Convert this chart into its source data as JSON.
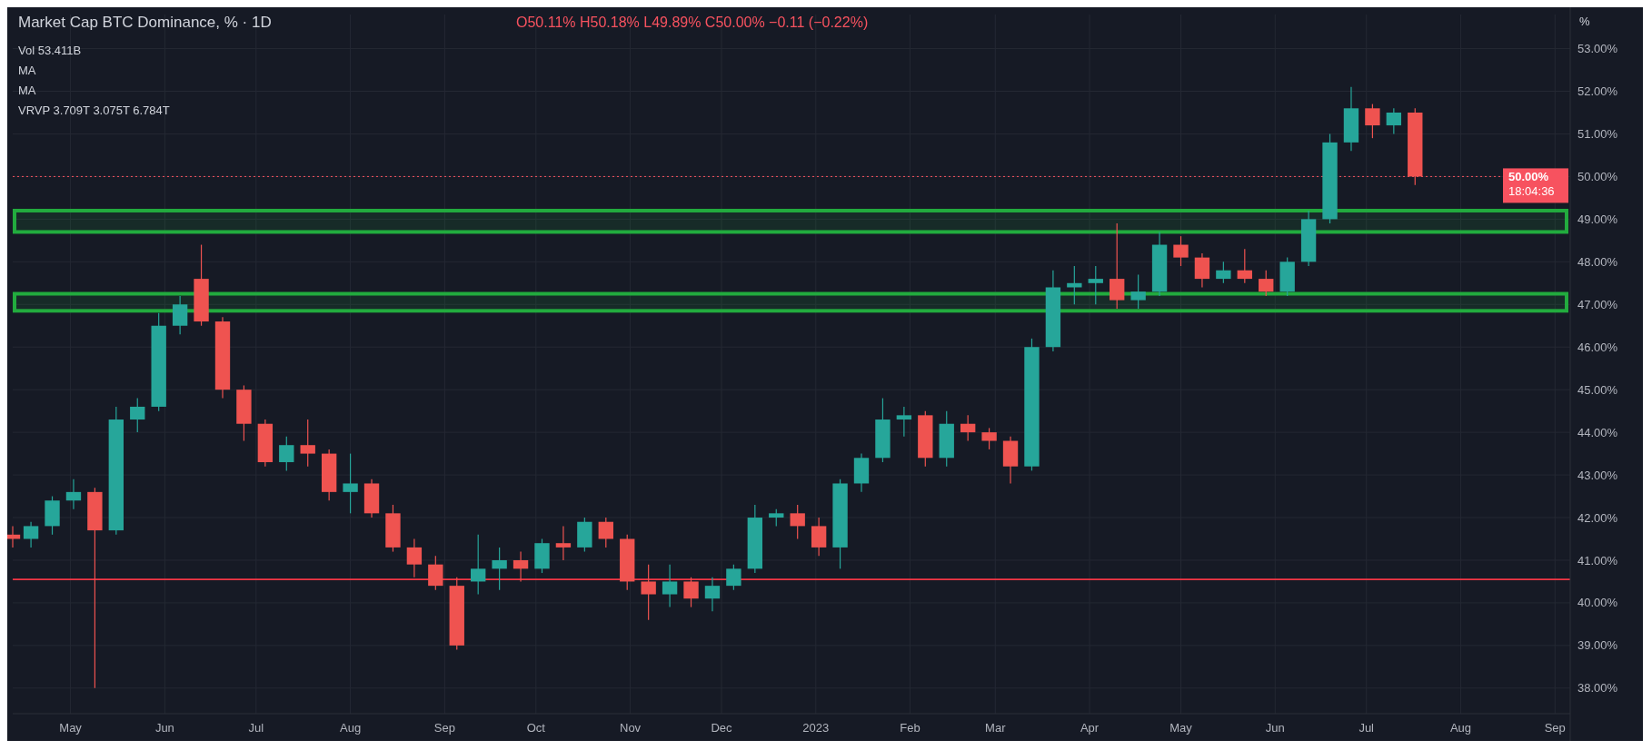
{
  "chart_data": {
    "type": "candlestick",
    "title": "Market Cap BTC Dominance, % · 1D",
    "subtitle": "O50.11% H50.18% L49.89% C50.00% −0.11 (−0.22%)",
    "ylabel": "%",
    "annotations": [
      "Vol 53.411B",
      "MA",
      "MA",
      "VRVP 3.709T 3.075T 6.784T",
      "18:04:36"
    ],
    "x": [
      "2022-04-12",
      "2022-04-18",
      "2022-04-25",
      "2022-05-02",
      "2022-05-09",
      "2022-05-16",
      "2022-05-23",
      "2022-05-30",
      "2022-06-06",
      "2022-06-13",
      "2022-06-20",
      "2022-06-27",
      "2022-07-04",
      "2022-07-11",
      "2022-07-18",
      "2022-07-25",
      "2022-08-01",
      "2022-08-08",
      "2022-08-15",
      "2022-08-22",
      "2022-08-29",
      "2022-09-05",
      "2022-09-12",
      "2022-09-19",
      "2022-09-26",
      "2022-10-03",
      "2022-10-10",
      "2022-10-17",
      "2022-10-24",
      "2022-10-31",
      "2022-11-07",
      "2022-11-14",
      "2022-11-21",
      "2022-11-28",
      "2022-12-05",
      "2022-12-12",
      "2022-12-19",
      "2022-12-26",
      "2023-01-02",
      "2023-01-09",
      "2023-01-16",
      "2023-01-23",
      "2023-01-30",
      "2023-02-06",
      "2023-02-13",
      "2023-02-20",
      "2023-02-27",
      "2023-03-06",
      "2023-03-13",
      "2023-03-20",
      "2023-03-27",
      "2023-04-03",
      "2023-04-10",
      "2023-04-17",
      "2023-04-24",
      "2023-05-01",
      "2023-05-08",
      "2023-05-15",
      "2023-05-22",
      "2023-05-29",
      "2023-06-05",
      "2023-06-12",
      "2023-06-19",
      "2023-06-26",
      "2023-07-03",
      "2023-07-10",
      "2023-07-17"
    ],
    "ohlc": [
      [
        41.6,
        41.8,
        41.3,
        41.5
      ],
      [
        41.5,
        41.9,
        41.3,
        41.8
      ],
      [
        41.8,
        42.5,
        41.6,
        42.4
      ],
      [
        42.4,
        42.9,
        42.2,
        42.6
      ],
      [
        42.6,
        42.7,
        38.0,
        41.7
      ],
      [
        41.7,
        44.6,
        41.6,
        44.3
      ],
      [
        44.3,
        44.8,
        44.0,
        44.6
      ],
      [
        44.6,
        46.8,
        44.5,
        46.5
      ],
      [
        46.5,
        47.2,
        46.3,
        47.0
      ],
      [
        47.6,
        48.4,
        46.5,
        46.6
      ],
      [
        46.6,
        46.7,
        44.8,
        45.0
      ],
      [
        45.0,
        45.1,
        43.8,
        44.2
      ],
      [
        44.2,
        44.3,
        43.2,
        43.3
      ],
      [
        43.3,
        43.9,
        43.1,
        43.7
      ],
      [
        43.7,
        44.3,
        43.2,
        43.5
      ],
      [
        43.5,
        43.6,
        42.4,
        42.6
      ],
      [
        42.6,
        43.5,
        42.1,
        42.8
      ],
      [
        42.8,
        42.9,
        42.0,
        42.1
      ],
      [
        42.1,
        42.3,
        41.2,
        41.3
      ],
      [
        41.3,
        41.5,
        40.6,
        40.9
      ],
      [
        40.9,
        41.1,
        40.3,
        40.4
      ],
      [
        40.4,
        40.6,
        38.9,
        39.0
      ],
      [
        40.5,
        41.6,
        40.2,
        40.8
      ],
      [
        40.8,
        41.3,
        40.3,
        41.0
      ],
      [
        41.0,
        41.2,
        40.5,
        40.8
      ],
      [
        40.8,
        41.5,
        40.7,
        41.4
      ],
      [
        41.4,
        41.8,
        41.0,
        41.3
      ],
      [
        41.3,
        42.0,
        41.2,
        41.9
      ],
      [
        41.9,
        42.0,
        41.3,
        41.5
      ],
      [
        41.5,
        41.6,
        40.3,
        40.5
      ],
      [
        40.5,
        40.9,
        39.6,
        40.2
      ],
      [
        40.2,
        40.9,
        39.9,
        40.5
      ],
      [
        40.5,
        40.6,
        39.9,
        40.1
      ],
      [
        40.1,
        40.6,
        39.8,
        40.4
      ],
      [
        40.4,
        40.9,
        40.3,
        40.8
      ],
      [
        40.8,
        42.3,
        40.7,
        42.0
      ],
      [
        42.0,
        42.2,
        41.8,
        42.1
      ],
      [
        42.1,
        42.3,
        41.5,
        41.8
      ],
      [
        41.8,
        42.0,
        41.1,
        41.3
      ],
      [
        41.3,
        42.9,
        40.8,
        42.8
      ],
      [
        42.8,
        43.5,
        42.6,
        43.4
      ],
      [
        43.4,
        44.8,
        43.3,
        44.3
      ],
      [
        44.3,
        44.6,
        43.9,
        44.4
      ],
      [
        44.4,
        44.5,
        43.2,
        43.4
      ],
      [
        43.4,
        44.5,
        43.2,
        44.2
      ],
      [
        44.2,
        44.4,
        43.8,
        44.0
      ],
      [
        44.0,
        44.1,
        43.6,
        43.8
      ],
      [
        43.8,
        43.9,
        42.8,
        43.2
      ],
      [
        43.2,
        46.2,
        43.1,
        46.0
      ],
      [
        46.0,
        47.8,
        45.9,
        47.4
      ],
      [
        47.4,
        47.9,
        47.0,
        47.5
      ],
      [
        47.5,
        47.9,
        47.0,
        47.6
      ],
      [
        47.6,
        48.9,
        46.9,
        47.1
      ],
      [
        47.1,
        47.7,
        46.9,
        47.3
      ],
      [
        47.3,
        48.7,
        47.2,
        48.4
      ],
      [
        48.4,
        48.6,
        47.9,
        48.1
      ],
      [
        48.1,
        48.2,
        47.4,
        47.6
      ],
      [
        47.6,
        48.0,
        47.5,
        47.8
      ],
      [
        47.8,
        48.3,
        47.5,
        47.6
      ],
      [
        47.6,
        47.8,
        47.2,
        47.3
      ],
      [
        47.3,
        48.1,
        47.2,
        48.0
      ],
      [
        48.0,
        49.2,
        47.9,
        49.0
      ],
      [
        49.0,
        51.0,
        48.9,
        50.8
      ],
      [
        50.8,
        52.1,
        50.6,
        51.6
      ],
      [
        51.6,
        51.7,
        50.9,
        51.2
      ],
      [
        51.2,
        51.6,
        51.0,
        51.5
      ],
      [
        51.5,
        51.6,
        49.8,
        50.0
      ]
    ],
    "xlim": [
      "2022-04-12",
      "2023-09-06"
    ],
    "xticks": [
      {
        "value": "2022-05-01",
        "label": "May"
      },
      {
        "value": "2022-06-01",
        "label": "Jun"
      },
      {
        "value": "2022-07-01",
        "label": "Jul"
      },
      {
        "value": "2022-08-01",
        "label": "Aug"
      },
      {
        "value": "2022-09-01",
        "label": "Sep"
      },
      {
        "value": "2022-10-01",
        "label": "Oct"
      },
      {
        "value": "2022-11-01",
        "label": "Nov"
      },
      {
        "value": "2022-12-01",
        "label": "Dec"
      },
      {
        "value": "2023-01-01",
        "label": "2023"
      },
      {
        "value": "2023-02-01",
        "label": "Feb"
      },
      {
        "value": "2023-03-01",
        "label": "Mar"
      },
      {
        "value": "2023-04-01",
        "label": "Apr"
      },
      {
        "value": "2023-05-01",
        "label": "May"
      },
      {
        "value": "2023-06-01",
        "label": "Jun"
      },
      {
        "value": "2023-07-01",
        "label": "Jul"
      },
      {
        "value": "2023-08-01",
        "label": "Aug"
      },
      {
        "value": "2023-09-01",
        "label": "Sep"
      }
    ],
    "ylim": [
      37.4,
      53.8
    ],
    "yticks": [
      {
        "value": 38,
        "label": "38.00%"
      },
      {
        "value": 39,
        "label": "39.00%"
      },
      {
        "value": 40,
        "label": "40.00%"
      },
      {
        "value": 41,
        "label": "41.00%"
      },
      {
        "value": 42,
        "label": "42.00%"
      },
      {
        "value": 43,
        "label": "43.00%"
      },
      {
        "value": 44,
        "label": "44.00%"
      },
      {
        "value": 45,
        "label": "45.00%"
      },
      {
        "value": 46,
        "label": "46.00%"
      },
      {
        "value": 47,
        "label": "47.00%"
      },
      {
        "value": 48,
        "label": "48.00%"
      },
      {
        "value": 49,
        "label": "49.00%"
      },
      {
        "value": 50,
        "label": "50.00%"
      },
      {
        "value": 51,
        "label": "51.00%"
      },
      {
        "value": 52,
        "label": "52.00%"
      },
      {
        "value": 53,
        "label": "53.00%"
      }
    ],
    "ref_lines": [
      {
        "axis": "y",
        "value": 40.55,
        "label": null,
        "color": "#f23645",
        "line_style": "solid"
      },
      {
        "axis": "y",
        "value": 50.0,
        "label": "50.00%",
        "color": "#f7525f",
        "line_style": "dotted"
      }
    ],
    "bands": [
      {
        "axis": "y",
        "from": 48.7,
        "to": 49.2,
        "label": null,
        "color": "#22ab3e"
      },
      {
        "axis": "y",
        "from": 46.85,
        "to": 47.25,
        "label": null,
        "color": "#22ab3e"
      }
    ],
    "grid": true
  }
}
